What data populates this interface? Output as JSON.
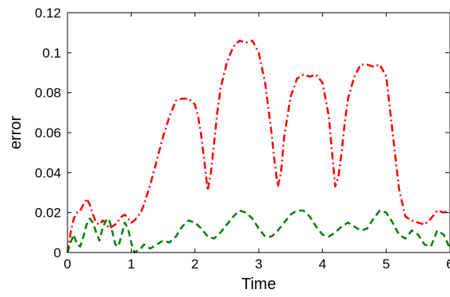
{
  "chart_data": {
    "type": "line",
    "title": "",
    "xlabel": "Time",
    "ylabel": "error",
    "xlim": [
      0,
      6
    ],
    "ylim": [
      0,
      0.12
    ],
    "xticks": [
      0,
      1,
      2,
      3,
      4,
      5,
      6
    ],
    "xtick_labels": [
      "0",
      "1",
      "2",
      "3",
      "4",
      "5",
      "6"
    ],
    "yticks": [
      0,
      0.02,
      0.04,
      0.06,
      0.08,
      0.1,
      0.12
    ],
    "ytick_labels": [
      "0",
      "0.02",
      "0.04",
      "0.06",
      "0.08",
      "0.1",
      "0.12"
    ],
    "grid": false,
    "legend": "none",
    "series": [
      {
        "color": "#ff0000",
        "dash": "dash-dot",
        "x": [
          0,
          0.05,
          0.1,
          0.15,
          0.2,
          0.25,
          0.3,
          0.35,
          0.4,
          0.45,
          0.5,
          0.55,
          0.6,
          0.65,
          0.7,
          0.75,
          0.8,
          0.85,
          0.9,
          0.95,
          1.0,
          1.05,
          1.1,
          1.15,
          1.2,
          1.3,
          1.4,
          1.5,
          1.6,
          1.7,
          1.8,
          1.9,
          2.0,
          2.05,
          2.1,
          2.15,
          2.2,
          2.25,
          2.3,
          2.35,
          2.4,
          2.5,
          2.6,
          2.7,
          2.8,
          2.9,
          3.0,
          3.1,
          3.2,
          3.25,
          3.3,
          3.35,
          3.4,
          3.5,
          3.6,
          3.7,
          3.8,
          3.9,
          4.0,
          4.1,
          4.15,
          4.2,
          4.25,
          4.3,
          4.35,
          4.4,
          4.5,
          4.6,
          4.7,
          4.8,
          4.9,
          5.0,
          5.1,
          5.2,
          5.3,
          5.4,
          5.5,
          5.6,
          5.7,
          5.8,
          5.9,
          6.0
        ],
        "y": [
          0.0,
          0.01,
          0.017,
          0.02,
          0.021,
          0.024,
          0.027,
          0.024,
          0.019,
          0.015,
          0.014,
          0.016,
          0.015,
          0.012,
          0.013,
          0.014,
          0.016,
          0.018,
          0.019,
          0.017,
          0.015,
          0.016,
          0.018,
          0.02,
          0.024,
          0.034,
          0.046,
          0.058,
          0.068,
          0.076,
          0.077,
          0.077,
          0.074,
          0.068,
          0.058,
          0.045,
          0.031,
          0.04,
          0.055,
          0.07,
          0.082,
          0.095,
          0.103,
          0.106,
          0.105,
          0.106,
          0.1,
          0.085,
          0.06,
          0.045,
          0.033,
          0.04,
          0.058,
          0.078,
          0.087,
          0.089,
          0.088,
          0.089,
          0.085,
          0.068,
          0.05,
          0.033,
          0.038,
          0.05,
          0.065,
          0.077,
          0.088,
          0.094,
          0.094,
          0.093,
          0.094,
          0.088,
          0.06,
          0.032,
          0.018,
          0.016,
          0.015,
          0.014,
          0.017,
          0.021,
          0.02,
          0.021
        ]
      },
      {
        "color": "#008000",
        "dash": "dashed",
        "x": [
          0,
          0.05,
          0.1,
          0.15,
          0.2,
          0.25,
          0.3,
          0.35,
          0.4,
          0.45,
          0.5,
          0.55,
          0.6,
          0.65,
          0.7,
          0.75,
          0.8,
          0.85,
          0.9,
          0.95,
          1.0,
          1.05,
          1.1,
          1.15,
          1.2,
          1.3,
          1.4,
          1.5,
          1.6,
          1.7,
          1.8,
          1.9,
          2.0,
          2.1,
          2.2,
          2.3,
          2.4,
          2.5,
          2.6,
          2.7,
          2.8,
          2.9,
          3.0,
          3.1,
          3.2,
          3.3,
          3.4,
          3.5,
          3.6,
          3.7,
          3.8,
          3.9,
          4.0,
          4.1,
          4.2,
          4.3,
          4.4,
          4.5,
          4.6,
          4.7,
          4.8,
          4.9,
          5.0,
          5.1,
          5.2,
          5.3,
          5.4,
          5.5,
          5.6,
          5.7,
          5.8,
          5.9,
          6.0
        ],
        "y": [
          0.0,
          0.005,
          0.009,
          0.004,
          0.003,
          0.008,
          0.014,
          0.017,
          0.015,
          0.01,
          0.006,
          0.012,
          0.016,
          0.017,
          0.011,
          0.004,
          0.003,
          0.009,
          0.015,
          0.012,
          0.005,
          0.0,
          0.001,
          0.002,
          0.004,
          0.002,
          0.004,
          0.006,
          0.005,
          0.008,
          0.013,
          0.016,
          0.015,
          0.012,
          0.008,
          0.007,
          0.01,
          0.014,
          0.018,
          0.021,
          0.02,
          0.017,
          0.012,
          0.008,
          0.008,
          0.011,
          0.015,
          0.019,
          0.021,
          0.021,
          0.018,
          0.013,
          0.009,
          0.008,
          0.01,
          0.013,
          0.015,
          0.013,
          0.011,
          0.012,
          0.017,
          0.021,
          0.02,
          0.015,
          0.009,
          0.007,
          0.011,
          0.009,
          0.004,
          0.003,
          0.011,
          0.009,
          0.002
        ]
      }
    ]
  }
}
